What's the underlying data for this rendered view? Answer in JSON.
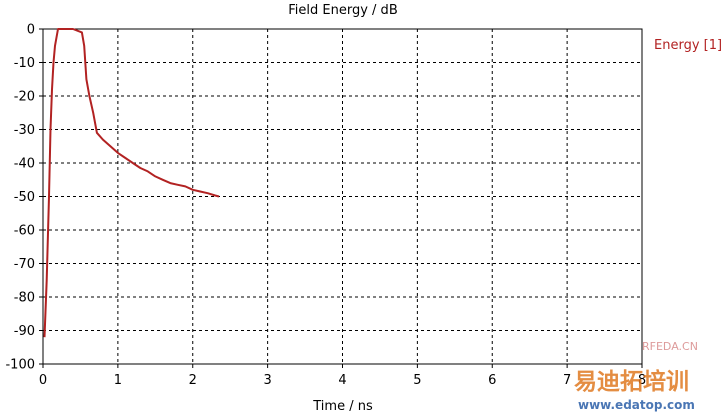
{
  "chart_data": {
    "type": "line",
    "title": "Field Energy / dB",
    "xlabel": "Time / ns",
    "ylabel": "",
    "xlim": [
      0,
      8
    ],
    "ylim": [
      -100,
      0
    ],
    "x_ticks": [
      "0",
      "1",
      "2",
      "3",
      "4",
      "5",
      "6",
      "7",
      "8"
    ],
    "y_ticks": [
      "0",
      "-10",
      "-20",
      "-30",
      "-40",
      "-50",
      "-60",
      "-70",
      "-80",
      "-90",
      "-100"
    ],
    "grid": true,
    "legend_position": "top-right",
    "series": [
      {
        "name": "Energy [1]",
        "color": "#b22222",
        "x": [
          0.02,
          0.05,
          0.08,
          0.1,
          0.12,
          0.14,
          0.16,
          0.2,
          0.3,
          0.4,
          0.52,
          0.55,
          0.58,
          0.62,
          0.67,
          0.72,
          0.8,
          0.9,
          1.0,
          1.1,
          1.2,
          1.3,
          1.4,
          1.5,
          1.6,
          1.7,
          1.8,
          1.9,
          2.0,
          2.1,
          2.2,
          2.3,
          2.35
        ],
        "y": [
          -92,
          -75,
          -50,
          -30,
          -18,
          -10,
          -5,
          0,
          0,
          0,
          -1,
          -5,
          -15,
          -20,
          -25,
          -31,
          -33,
          -35,
          -37,
          -38.5,
          -40,
          -41.5,
          -42.5,
          -44,
          -45,
          -46,
          -46.5,
          -47,
          -48,
          -48.5,
          -49,
          -49.7,
          -50
        ]
      }
    ]
  },
  "watermark": {
    "site": "RFEDA.CN",
    "brand": "易迪拓培训",
    "url": "www.edatop.com"
  }
}
